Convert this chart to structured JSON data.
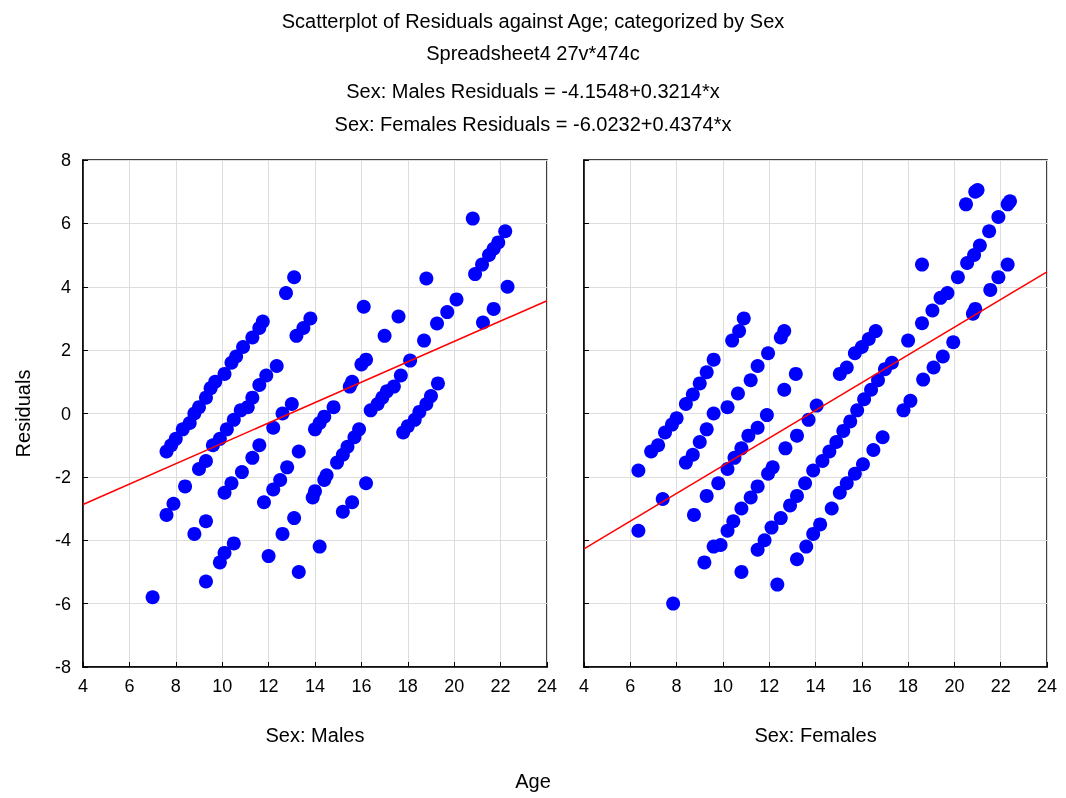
{
  "chart_data": [
    {
      "type": "scatter",
      "title": "Scatterplot of Residuals against Age; categorized by Sex",
      "subtitle": "Spreadsheet4 27v*474c",
      "annotations": [
        "Sex: Males Residuals = -4.1548+0.3214*x",
        "Sex: Females Residuals = -6.0232+0.4374*x",
        "Age"
      ],
      "xlabel": "Sex: Males",
      "ylabel": "Residuals",
      "xlim": [
        4,
        24
      ],
      "xticks": [
        4,
        6,
        8,
        10,
        12,
        14,
        16,
        18,
        20,
        22,
        24
      ],
      "ylim": [
        -8,
        8
      ],
      "yticks": [
        -8,
        -6,
        -4,
        -2,
        0,
        2,
        4,
        6,
        8
      ],
      "grid": true,
      "series": [
        {
          "color": "#0000ff",
          "marker": "circle",
          "x": [
            7.0,
            7.6,
            7.8,
            8.0,
            8.3,
            8.6,
            8.8,
            9.0,
            9.3,
            9.5,
            9.7,
            10.1,
            10.4,
            10.6,
            10.9,
            11.3,
            11.6,
            11.75,
            12.75,
            13.1,
            13.2,
            13.5,
            13.8,
            7.6,
            7.9,
            8.4,
            9.0,
            9.3,
            9.6,
            9.9,
            10.2,
            10.5,
            10.8,
            11.1,
            11.3,
            11.6,
            11.9,
            12.35,
            12.2,
            12.6,
            13.0,
            10.1,
            10.4,
            10.85,
            11.3,
            11.6,
            11.8,
            12.2,
            12.5,
            12.8,
            13.3,
            8.8,
            9.3,
            9.3,
            9.9,
            10.1,
            10.5,
            12.0,
            12.6,
            13.1,
            13.3,
            13.9,
            14.0,
            14.2,
            14.4,
            14.5,
            14.95,
            15.2,
            15.4,
            15.2,
            15.6,
            16.2,
            14.0,
            14.2,
            14.4,
            14.8,
            15.5,
            15.6,
            16.0,
            16.2,
            16.1,
            15.7,
            15.9,
            16.4,
            16.7,
            16.9,
            17.1,
            17.4,
            17.7,
            18.1,
            17.0,
            17.6,
            17.8,
            18.0,
            18.3,
            18.5,
            18.8,
            19.0,
            19.3,
            18.7,
            18.8,
            19.26,
            19.7,
            20.1,
            20.8,
            20.9,
            21.2,
            21.5,
            21.7,
            21.9,
            22.2,
            21.24,
            21.7,
            22.3
          ],
          "values": [
            -5.8,
            -1.2,
            -1.0,
            -0.8,
            -0.5,
            -0.3,
            0.0,
            0.2,
            0.5,
            0.8,
            1.0,
            1.25,
            1.6,
            1.8,
            2.1,
            2.4,
            2.7,
            2.9,
            3.8,
            4.3,
            2.45,
            2.7,
            3.0,
            -3.2,
            -2.85,
            -2.3,
            -1.75,
            -1.5,
            -1.0,
            -0.8,
            -0.5,
            -0.2,
            0.1,
            0.2,
            0.5,
            0.9,
            1.2,
            1.5,
            -0.45,
            0.0,
            0.3,
            -2.5,
            -2.2,
            -1.85,
            -1.4,
            -1.0,
            -2.8,
            -2.4,
            -2.1,
            -1.7,
            -1.2,
            -3.8,
            -3.4,
            -5.3,
            -4.7,
            -4.4,
            -4.1,
            -4.5,
            -3.8,
            -3.3,
            -5.0,
            -2.65,
            -2.45,
            -4.2,
            -2.1,
            -1.95,
            -1.55,
            -1.3,
            -1.05,
            -3.1,
            -2.8,
            -2.2,
            -0.5,
            -0.3,
            -0.1,
            0.2,
            0.85,
            1.0,
            1.55,
            1.7,
            3.37,
            -0.75,
            -0.5,
            0.1,
            0.3,
            0.5,
            0.7,
            0.85,
            1.2,
            1.67,
            2.45,
            3.06,
            -0.6,
            -0.4,
            -0.2,
            0.05,
            0.3,
            0.55,
            0.95,
            2.3,
            4.26,
            2.84,
            3.2,
            3.6,
            6.15,
            4.4,
            4.7,
            5.0,
            5.2,
            5.4,
            5.75,
            2.87,
            3.3,
            4.0
          ]
        },
        {
          "type": "line",
          "color": "#ff0000",
          "marker": "none",
          "x": [
            4,
            24
          ],
          "values": [
            -2.87,
            3.56
          ]
        }
      ]
    },
    {
      "type": "scatter",
      "xlabel": "Sex: Females",
      "xlim": [
        4,
        24
      ],
      "xticks": [
        4,
        6,
        8,
        10,
        12,
        14,
        16,
        18,
        20,
        22,
        24
      ],
      "ylim": [
        -8,
        8
      ],
      "yticks": [
        -8,
        -6,
        -4,
        -2,
        0,
        2,
        4,
        6,
        8
      ],
      "tick_labels": "x",
      "grid": true,
      "series": [
        {
          "color": "#0000ff",
          "marker": "circle",
          "x": [
            6.35,
            6.35,
            7.85,
            7.4,
            6.9,
            7.2,
            7.5,
            7.8,
            8.0,
            8.4,
            8.7,
            9.0,
            9.3,
            9.6,
            10.4,
            10.7,
            10.9,
            8.4,
            8.7,
            9.0,
            9.3,
            9.6,
            10.2,
            10.65,
            11.2,
            11.5,
            11.95,
            12.5,
            12.65,
            13.15,
            12.65,
            11.9,
            10.5,
            10.8,
            11.1,
            11.5,
            10.2,
            9.3,
            9.8,
            8.75,
            10.45,
            10.8,
            11.2,
            10.2,
            9.6,
            9.9,
            9.2,
            10.8,
            11.5,
            11.95,
            12.15,
            11.5,
            11.8,
            12.1,
            12.5,
            12.9,
            13.2,
            12.35,
            13.2,
            13.6,
            13.9,
            14.2,
            14.7,
            12.7,
            13.2,
            13.55,
            13.9,
            13.7,
            14.05,
            15.05,
            15.35,
            15.7,
            16.05,
            16.5,
            16.9,
            14.3,
            14.6,
            14.9,
            15.2,
            15.5,
            15.8,
            16.1,
            16.4,
            16.7,
            17.0,
            17.3,
            15.05,
            15.35,
            15.7,
            16.0,
            16.3,
            16.6,
            17.8,
            18.1,
            18.65,
            19.1,
            19.5,
            19.95,
            18.0,
            18.6,
            19.05,
            19.4,
            19.7,
            18.6,
            20.15,
            20.55,
            20.85,
            21.1,
            21.5,
            21.9,
            22.3,
            22.4,
            20.5,
            20.9,
            21.0,
            20.8,
            20.9,
            21.55,
            21.9,
            22.3
          ],
          "values": [
            -1.8,
            -3.7,
            -6.0,
            -2.7,
            -1.2,
            -1.0,
            -0.6,
            -0.35,
            -0.15,
            0.3,
            0.6,
            0.95,
            1.3,
            1.7,
            2.3,
            2.6,
            3.0,
            -1.55,
            -1.3,
            -0.9,
            -0.5,
            0.0,
            0.2,
            0.63,
            1.05,
            1.5,
            1.9,
            2.4,
            2.6,
            1.25,
            0.75,
            -0.05,
            -1.4,
            -1.1,
            -0.7,
            -0.45,
            -1.75,
            -2.6,
            -2.2,
            -3.2,
            -3.4,
            -3.0,
            -2.65,
            -3.7,
            -4.2,
            -4.15,
            -4.7,
            -5.0,
            -2.3,
            -1.9,
            -1.7,
            -4.3,
            -4.0,
            -3.6,
            -3.3,
            -2.9,
            -2.6,
            -5.4,
            -4.6,
            -4.2,
            -3.8,
            -3.5,
            -3.0,
            -1.1,
            -0.7,
            -2.2,
            -1.8,
            -0.2,
            0.25,
            -2.5,
            -2.2,
            -1.9,
            -1.6,
            -1.15,
            -0.75,
            -1.5,
            -1.2,
            -0.9,
            -0.55,
            -0.25,
            0.1,
            0.45,
            0.75,
            1.05,
            1.4,
            1.6,
            1.25,
            1.45,
            1.9,
            2.1,
            2.35,
            2.6,
            0.1,
            0.4,
            1.07,
            1.45,
            1.8,
            2.25,
            2.3,
            2.85,
            3.25,
            3.65,
            3.8,
            4.7,
            4.3,
            4.75,
            5.0,
            5.3,
            5.75,
            6.2,
            6.6,
            6.7,
            6.6,
            7.0,
            7.05,
            3.15,
            3.3,
            3.9,
            4.3,
            4.7
          ]
        },
        {
          "type": "line",
          "color": "#ff0000",
          "marker": "none",
          "x": [
            4,
            24
          ],
          "values": [
            -4.27,
            4.47
          ]
        }
      ]
    }
  ]
}
